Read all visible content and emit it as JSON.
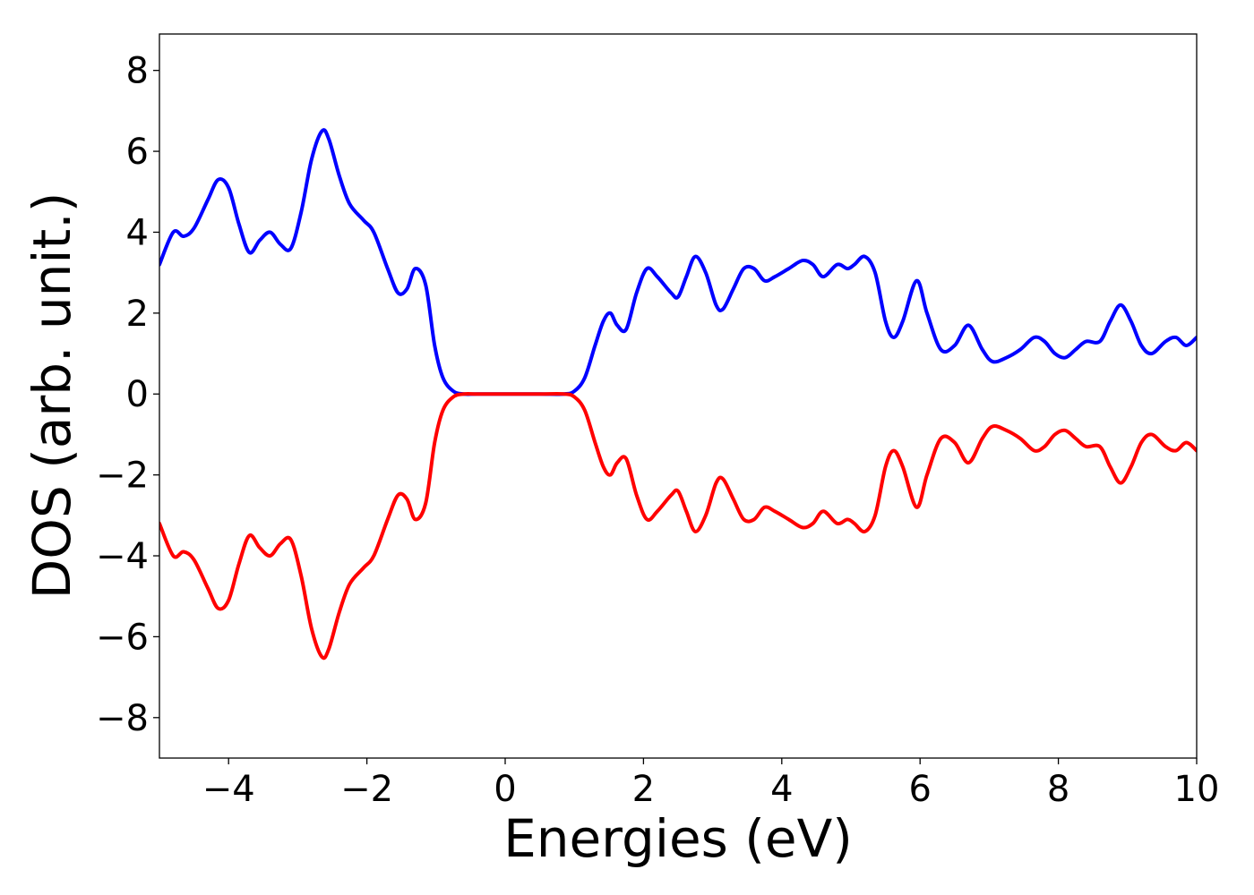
{
  "chart_data": {
    "type": "line",
    "title": "",
    "xlabel": "Energies (eV)",
    "ylabel": "DOS (arb. unit.)",
    "xlim": [
      -5,
      10
    ],
    "ylim": [
      -9,
      8.9
    ],
    "xticks": [
      -4,
      -2,
      0,
      2,
      4,
      6,
      8,
      10
    ],
    "xtick_labels": [
      "−4",
      "−2",
      "0",
      "2",
      "4",
      "6",
      "8",
      "10"
    ],
    "yticks": [
      -8,
      -6,
      -4,
      -2,
      0,
      2,
      4,
      6,
      8
    ],
    "ytick_labels": [
      "−8",
      "−6",
      "−4",
      "−2",
      "0",
      "2",
      "4",
      "6",
      "8"
    ],
    "grid": false,
    "series": [
      {
        "color": "#0000ff",
        "x": [
          -5.0,
          -4.8,
          -4.65,
          -4.5,
          -4.3,
          -4.15,
          -4.0,
          -3.85,
          -3.7,
          -3.55,
          -3.4,
          -3.25,
          -3.1,
          -2.95,
          -2.8,
          -2.65,
          -2.55,
          -2.4,
          -2.25,
          -2.05,
          -1.9,
          -1.7,
          -1.55,
          -1.42,
          -1.3,
          -1.15,
          -1.02,
          -0.9,
          -0.75,
          -0.6,
          -0.4,
          0.0,
          0.5,
          0.85,
          1.0,
          1.15,
          1.3,
          1.42,
          1.52,
          1.62,
          1.75,
          1.9,
          2.05,
          2.2,
          2.4,
          2.5,
          2.62,
          2.75,
          2.9,
          3.05,
          3.15,
          3.3,
          3.45,
          3.6,
          3.75,
          3.9,
          4.1,
          4.3,
          4.45,
          4.6,
          4.8,
          4.95,
          5.05,
          5.2,
          5.35,
          5.5,
          5.62,
          5.75,
          5.95,
          6.1,
          6.3,
          6.5,
          6.7,
          6.9,
          7.05,
          7.25,
          7.45,
          7.65,
          7.8,
          7.95,
          8.1,
          8.25,
          8.4,
          8.6,
          8.75,
          8.9,
          9.05,
          9.2,
          9.35,
          9.55,
          9.7,
          9.85,
          10.0
        ],
        "y": [
          3.2,
          4.0,
          3.9,
          4.1,
          4.8,
          5.3,
          5.1,
          4.2,
          3.5,
          3.8,
          4.0,
          3.7,
          3.6,
          4.5,
          5.8,
          6.5,
          6.3,
          5.4,
          4.7,
          4.3,
          4.0,
          3.1,
          2.5,
          2.6,
          3.1,
          2.7,
          1.2,
          0.4,
          0.07,
          0.0,
          0.0,
          0.0,
          0.0,
          0.0,
          0.07,
          0.4,
          1.2,
          1.8,
          2.0,
          1.7,
          1.6,
          2.5,
          3.1,
          2.9,
          2.5,
          2.4,
          2.9,
          3.4,
          3.0,
          2.2,
          2.1,
          2.6,
          3.1,
          3.1,
          2.8,
          2.9,
          3.1,
          3.3,
          3.2,
          2.9,
          3.2,
          3.1,
          3.2,
          3.4,
          3.0,
          1.8,
          1.4,
          1.8,
          2.8,
          2.0,
          1.1,
          1.2,
          1.7,
          1.1,
          0.8,
          0.9,
          1.1,
          1.4,
          1.3,
          1.0,
          0.9,
          1.1,
          1.3,
          1.3,
          1.8,
          2.2,
          1.8,
          1.2,
          1.0,
          1.3,
          1.4,
          1.2,
          1.4
        ]
      },
      {
        "color": "#ff0000",
        "x": [
          -5.0,
          -4.8,
          -4.65,
          -4.5,
          -4.3,
          -4.15,
          -4.0,
          -3.85,
          -3.7,
          -3.55,
          -3.4,
          -3.25,
          -3.1,
          -2.95,
          -2.8,
          -2.65,
          -2.55,
          -2.4,
          -2.25,
          -2.05,
          -1.9,
          -1.7,
          -1.55,
          -1.42,
          -1.3,
          -1.15,
          -1.02,
          -0.9,
          -0.75,
          -0.6,
          -0.4,
          0.0,
          0.5,
          0.85,
          1.0,
          1.15,
          1.3,
          1.42,
          1.52,
          1.62,
          1.75,
          1.9,
          2.05,
          2.2,
          2.4,
          2.5,
          2.62,
          2.75,
          2.9,
          3.05,
          3.15,
          3.3,
          3.45,
          3.6,
          3.75,
          3.9,
          4.1,
          4.3,
          4.45,
          4.6,
          4.8,
          4.95,
          5.05,
          5.2,
          5.35,
          5.5,
          5.62,
          5.75,
          5.95,
          6.1,
          6.3,
          6.5,
          6.7,
          6.9,
          7.05,
          7.25,
          7.45,
          7.65,
          7.8,
          7.95,
          8.1,
          8.25,
          8.4,
          8.6,
          8.75,
          8.9,
          9.05,
          9.2,
          9.35,
          9.55,
          9.7,
          9.85,
          10.0
        ],
        "y": [
          -3.2,
          -4.0,
          -3.9,
          -4.1,
          -4.8,
          -5.3,
          -5.1,
          -4.2,
          -3.5,
          -3.8,
          -4.0,
          -3.7,
          -3.6,
          -4.5,
          -5.8,
          -6.5,
          -6.3,
          -5.4,
          -4.7,
          -4.3,
          -4.0,
          -3.1,
          -2.5,
          -2.6,
          -3.1,
          -2.7,
          -1.2,
          -0.4,
          -0.07,
          0.0,
          0.0,
          0.0,
          0.0,
          0.0,
          -0.07,
          -0.4,
          -1.2,
          -1.8,
          -2.0,
          -1.7,
          -1.6,
          -2.5,
          -3.1,
          -2.9,
          -2.5,
          -2.4,
          -2.9,
          -3.4,
          -3.0,
          -2.2,
          -2.1,
          -2.6,
          -3.1,
          -3.1,
          -2.8,
          -2.9,
          -3.1,
          -3.3,
          -3.2,
          -2.9,
          -3.2,
          -3.1,
          -3.2,
          -3.4,
          -3.0,
          -1.8,
          -1.4,
          -1.8,
          -2.8,
          -2.0,
          -1.1,
          -1.2,
          -1.7,
          -1.1,
          -0.8,
          -0.9,
          -1.1,
          -1.4,
          -1.3,
          -1.0,
          -0.9,
          -1.1,
          -1.3,
          -1.3,
          -1.8,
          -2.2,
          -1.8,
          -1.2,
          -1.0,
          -1.3,
          -1.4,
          -1.2,
          -1.4
        ]
      }
    ]
  }
}
